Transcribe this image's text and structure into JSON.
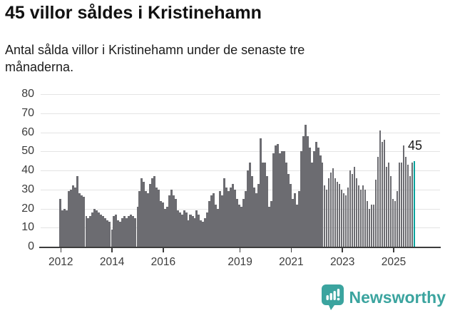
{
  "header": {
    "title": "45 villor såldes i Kristinehamn",
    "subtitle_line1": "Antal sålda villor i Kristinehamn under de senaste tre",
    "subtitle_line2": "månaderna."
  },
  "chart_data": {
    "type": "bar",
    "title": "45 villor såldes i Kristinehamn",
    "description": "Antal sålda villor i Kristinehamn under de senaste tre månaderna.",
    "frequency": "monthly",
    "x_start": "2012-01",
    "x_end": "2025-11",
    "ylim": [
      0,
      80
    ],
    "y_ticks": [
      0,
      10,
      20,
      30,
      40,
      50,
      60,
      70,
      80
    ],
    "x_tick_years": [
      2012,
      2014,
      2016,
      2019,
      2021,
      2023,
      2025
    ],
    "grid": "horizontal",
    "legend": "none",
    "bar_color": "#6c6c71",
    "highlight_color": "#00a29c",
    "highlight_index": 166,
    "annotation": {
      "text": "45",
      "value": 45
    },
    "values": [
      25,
      19,
      20,
      19,
      29,
      30,
      32,
      31,
      37,
      28,
      27,
      26,
      16,
      15,
      16,
      18,
      20,
      19,
      18,
      17,
      16,
      15,
      14,
      13,
      9,
      16,
      17,
      14,
      13,
      15,
      16,
      15,
      16,
      17,
      16,
      15,
      21,
      29,
      36,
      34,
      29,
      28,
      33,
      36,
      37,
      31,
      30,
      24,
      23,
      20,
      21,
      27,
      30,
      27,
      25,
      19,
      18,
      17,
      19,
      18,
      14,
      17,
      16,
      15,
      19,
      17,
      14,
      13,
      15,
      18,
      24,
      27,
      28,
      22,
      20,
      29,
      27,
      36,
      31,
      29,
      31,
      33,
      30,
      25,
      22,
      21,
      25,
      29,
      40,
      44,
      37,
      31,
      28,
      33,
      57,
      44,
      44,
      37,
      21,
      24,
      49,
      53,
      54,
      49,
      50,
      50,
      44,
      38,
      33,
      25,
      28,
      22,
      29,
      50,
      58,
      64,
      58,
      52,
      44,
      50,
      55,
      52,
      48,
      44,
      32,
      30,
      36,
      39,
      41,
      36,
      34,
      33,
      30,
      28,
      27,
      31,
      40,
      38,
      42,
      36,
      32,
      30,
      32,
      30,
      24,
      20,
      22,
      22,
      35,
      47,
      61,
      55,
      56,
      42,
      44,
      37,
      25,
      24,
      29,
      44,
      44,
      53,
      47,
      43,
      37,
      44,
      45
    ]
  },
  "footer": {
    "brand": "Newsworthy",
    "brand_color": "#3ba49f"
  }
}
